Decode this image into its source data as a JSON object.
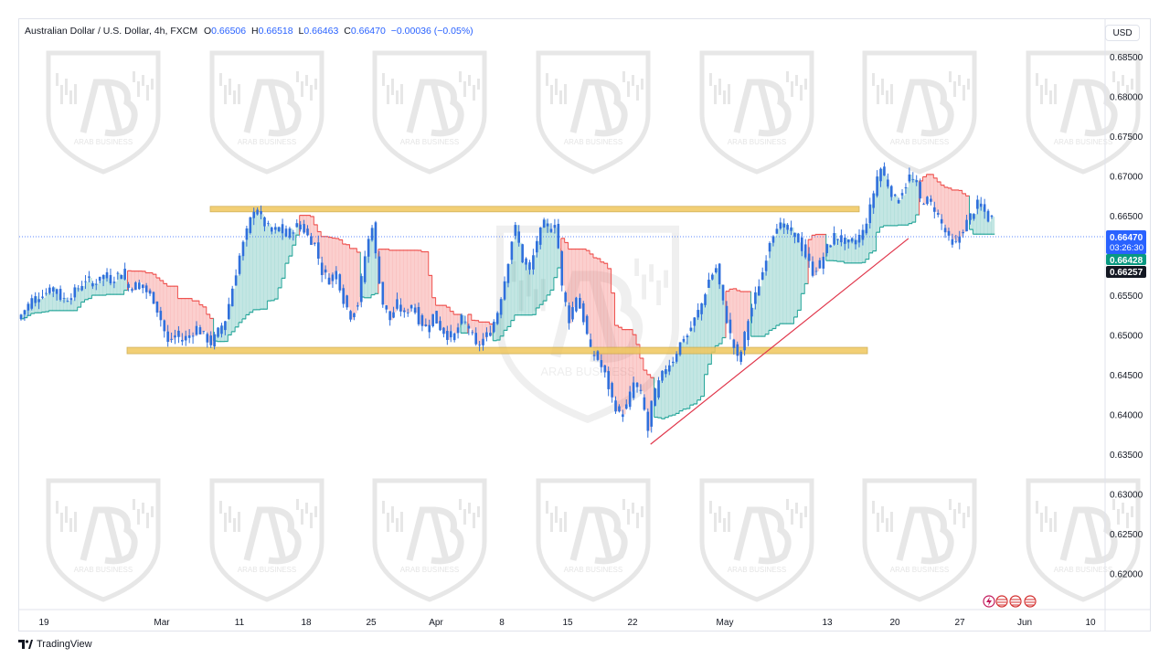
{
  "legend": {
    "symbol": "Australian Dollar / U.S. Dollar, 4h, FXCM",
    "o_label": "O",
    "o": "0.66506",
    "h_label": "H",
    "h": "0.66518",
    "l_label": "L",
    "l": "0.66463",
    "c_label": "C",
    "c": "0.66470",
    "change": "−0.00036 (−0.05%)"
  },
  "currency": "USD",
  "price_labels": {
    "last": "0.66470",
    "countdown": "03:26:30",
    "green": "0.66428",
    "black": "0.66257"
  },
  "watermark_text": "ARAB BUSINESS",
  "brand": "TradingView",
  "colors": {
    "candle": "#2f6fdc",
    "bull_fill": "#26a69a",
    "bear_fill": "#ef5350",
    "zone": "#f0c75e",
    "trendline": "#e0364b",
    "last_price": "#2962ff",
    "green_label": "#089981",
    "black_label": "#131722"
  },
  "chart_data": {
    "type": "line",
    "title": "Australian Dollar / U.S. Dollar, 4h, FXCM",
    "ylim": [
      0.6155,
      0.6898
    ],
    "y_ticks": [
      "0.68500",
      "0.68000",
      "0.67500",
      "0.67000",
      "0.66500",
      "0.66000",
      "0.65500",
      "0.65000",
      "0.64500",
      "0.64000",
      "0.63500",
      "0.63000",
      "0.62500",
      "0.62000"
    ],
    "x_ticks": [
      "19",
      "Mar",
      "11",
      "18",
      "25",
      "Apr",
      "8",
      "15",
      "22",
      "May",
      "13",
      "20",
      "27",
      "Jun",
      "10"
    ],
    "series": [
      {
        "values": [
          [
            0,
            0.652
          ],
          [
            8,
            0.6545
          ],
          [
            15,
            0.6553
          ],
          [
            20,
            0.656
          ],
          [
            25,
            0.6545
          ],
          [
            30,
            0.655
          ],
          [
            38,
            0.657
          ],
          [
            42,
            0.6565
          ],
          [
            48,
            0.6575
          ],
          [
            52,
            0.657
          ],
          [
            58,
            0.658
          ],
          [
            62,
            0.656
          ],
          [
            68,
            0.6565
          ],
          [
            72,
            0.6555
          ],
          [
            76,
            0.6545
          ],
          [
            80,
            0.652
          ],
          [
            84,
            0.649
          ],
          [
            88,
            0.65
          ],
          [
            92,
            0.6495
          ],
          [
            96,
            0.65
          ],
          [
            100,
            0.651
          ],
          [
            104,
            0.65
          ],
          [
            108,
            0.649
          ],
          [
            112,
            0.6505
          ],
          [
            116,
            0.652
          ],
          [
            120,
            0.656
          ],
          [
            124,
            0.66
          ],
          [
            128,
            0.663
          ],
          [
            132,
            0.666
          ],
          [
            134,
            0.6655
          ],
          [
            138,
            0.664
          ],
          [
            142,
            0.663
          ],
          [
            146,
            0.6635
          ],
          [
            150,
            0.6625
          ],
          [
            154,
            0.6635
          ],
          [
            158,
            0.664
          ],
          [
            162,
            0.6625
          ],
          [
            166,
            0.6615
          ],
          [
            170,
            0.658
          ],
          [
            174,
            0.657
          ],
          [
            178,
            0.658
          ],
          [
            182,
            0.6545
          ],
          [
            186,
            0.6525
          ],
          [
            190,
            0.654
          ],
          [
            194,
            0.66
          ],
          [
            198,
            0.664
          ],
          [
            200,
            0.66
          ],
          [
            204,
            0.654
          ],
          [
            208,
            0.652
          ],
          [
            212,
            0.654
          ],
          [
            216,
            0.6525
          ],
          [
            220,
            0.654
          ],
          [
            224,
            0.652
          ],
          [
            228,
            0.651
          ],
          [
            232,
            0.6525
          ],
          [
            236,
            0.651
          ],
          [
            240,
            0.65
          ],
          [
            244,
            0.65
          ],
          [
            248,
            0.652
          ],
          [
            252,
            0.651
          ],
          [
            256,
            0.6485
          ],
          [
            260,
            0.6495
          ],
          [
            264,
            0.6505
          ],
          [
            268,
            0.653
          ],
          [
            272,
            0.657
          ],
          [
            276,
            0.662
          ],
          [
            278,
            0.6635
          ],
          [
            282,
            0.6595
          ],
          [
            286,
            0.658
          ],
          [
            290,
            0.662
          ],
          [
            294,
            0.664
          ],
          [
            298,
            0.6635
          ],
          [
            300,
            0.664
          ],
          [
            302,
            0.661
          ],
          [
            304,
            0.656
          ],
          [
            308,
            0.652
          ],
          [
            312,
            0.655
          ],
          [
            316,
            0.652
          ],
          [
            320,
            0.648
          ],
          [
            324,
            0.647
          ],
          [
            328,
            0.645
          ],
          [
            332,
            0.642
          ],
          [
            336,
            0.64
          ],
          [
            340,
            0.641
          ],
          [
            344,
            0.644
          ],
          [
            348,
            0.6425
          ],
          [
            350,
            0.6405
          ],
          [
            352,
            0.638
          ],
          [
            354,
            0.6415
          ],
          [
            358,
            0.644
          ],
          [
            362,
            0.646
          ],
          [
            366,
            0.647
          ],
          [
            370,
            0.649
          ],
          [
            374,
            0.65
          ],
          [
            378,
            0.652
          ],
          [
            382,
            0.654
          ],
          [
            386,
            0.657
          ],
          [
            390,
            0.6585
          ],
          [
            394,
            0.654
          ],
          [
            398,
            0.65
          ],
          [
            402,
            0.647
          ],
          [
            404,
            0.648
          ],
          [
            408,
            0.652
          ],
          [
            412,
            0.655
          ],
          [
            416,
            0.658
          ],
          [
            420,
            0.662
          ],
          [
            424,
            0.664
          ],
          [
            428,
            0.6635
          ],
          [
            432,
            0.663
          ],
          [
            436,
            0.662
          ],
          [
            440,
            0.66
          ],
          [
            444,
            0.658
          ],
          [
            448,
            0.659
          ],
          [
            452,
            0.661
          ],
          [
            456,
            0.6625
          ],
          [
            460,
            0.662
          ],
          [
            464,
            0.6615
          ],
          [
            468,
            0.662
          ],
          [
            472,
            0.663
          ],
          [
            476,
            0.666
          ],
          [
            480,
            0.67
          ],
          [
            482,
            0.671
          ],
          [
            486,
            0.669
          ],
          [
            490,
            0.667
          ],
          [
            494,
            0.668
          ],
          [
            498,
            0.67
          ],
          [
            502,
            0.669
          ],
          [
            504,
            0.667
          ],
          [
            508,
            0.667
          ],
          [
            512,
            0.666
          ],
          [
            516,
            0.664
          ],
          [
            520,
            0.662
          ],
          [
            524,
            0.6615
          ],
          [
            528,
            0.6635
          ],
          [
            532,
            0.665
          ],
          [
            536,
            0.6665
          ],
          [
            540,
            0.6655
          ],
          [
            542,
            0.6647
          ]
        ]
      }
    ],
    "annotations": [
      {
        "type": "resistance_zone",
        "price": 0.6659
      },
      {
        "type": "support_zone",
        "price": 0.6481
      },
      {
        "type": "trendline",
        "from": [
          352,
          0.6363
        ],
        "to": [
          496,
          0.6622
        ]
      }
    ]
  }
}
